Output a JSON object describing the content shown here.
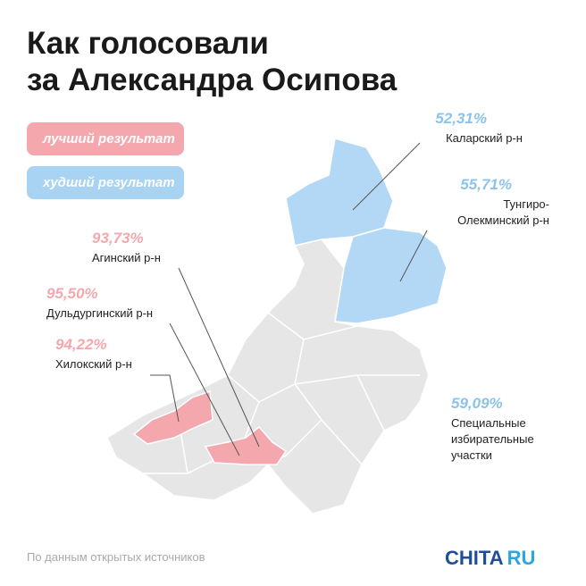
{
  "title": [
    "Как голосовали",
    "за Александра Осипова"
  ],
  "legend": [
    {
      "label": "лучший результат"
    },
    {
      "label": "худший результат"
    }
  ],
  "regions": [
    {
      "value": "52,31%",
      "name": [
        "Каларский р-н"
      ]
    },
    {
      "value": "55,71%",
      "name": [
        "Тунгиро-",
        "Олекминский р-н"
      ]
    },
    {
      "value": "93,73%",
      "name": [
        "Агинский р-н"
      ]
    },
    {
      "value": "95,50%",
      "name": [
        "Дульдургинский р-н"
      ]
    },
    {
      "value": "94,22%",
      "name": [
        "Хилокский р-н"
      ]
    },
    {
      "value": "59,09%",
      "name": [
        "Специальные",
        "избирательные",
        "участки"
      ]
    }
  ],
  "source": "По данным открытых источников",
  "logo": [
    "CHITA",
    "RU"
  ]
}
